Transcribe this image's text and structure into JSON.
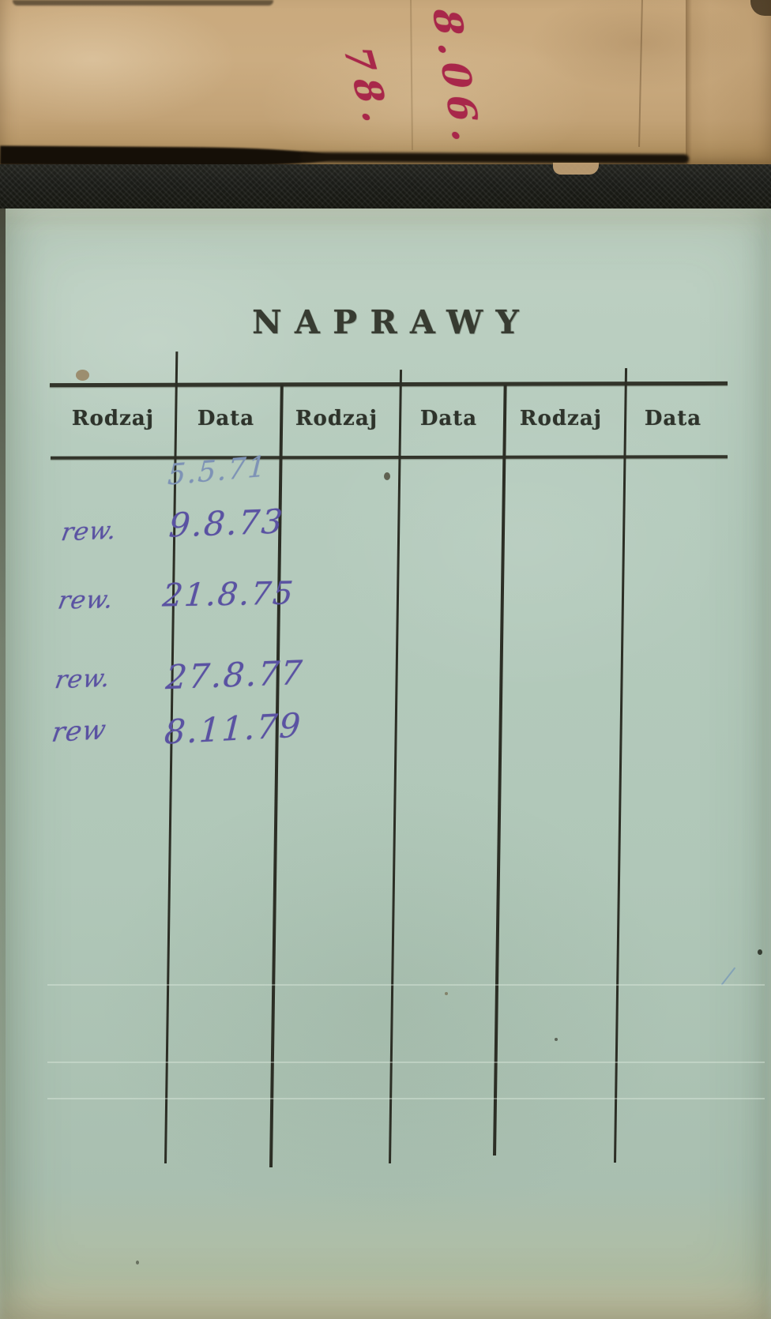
{
  "cover_label": {
    "lines": [
      "78.",
      "8.06."
    ],
    "ink_color": "#a8274a"
  },
  "page": {
    "title": "NAPRAWY",
    "table": {
      "column_headers": [
        "Rodzaj",
        "Data",
        "Rodzaj",
        "Data",
        "Rodzaj",
        "Data"
      ],
      "entries": [
        {
          "rodzaj": "",
          "data": "5.5.71"
        },
        {
          "rodzaj": "rew.",
          "data": "9.8.73"
        },
        {
          "rodzaj": "rew.",
          "data": "21.8.75"
        },
        {
          "rodzaj": "rew.",
          "data": "27.8.77"
        },
        {
          "rodzaj": "rew",
          "data": "8.11.79"
        }
      ]
    }
  },
  "colors": {
    "page_green": "#b2c8ba",
    "cover_kraft": "#c6a67a",
    "cloth_black": "#1c1d19",
    "print_ink": "#2f332a",
    "handwriting_ink": "#5a52a2",
    "handwriting_ink_light": "#7e93b6",
    "red_ink": "#a8274a"
  }
}
